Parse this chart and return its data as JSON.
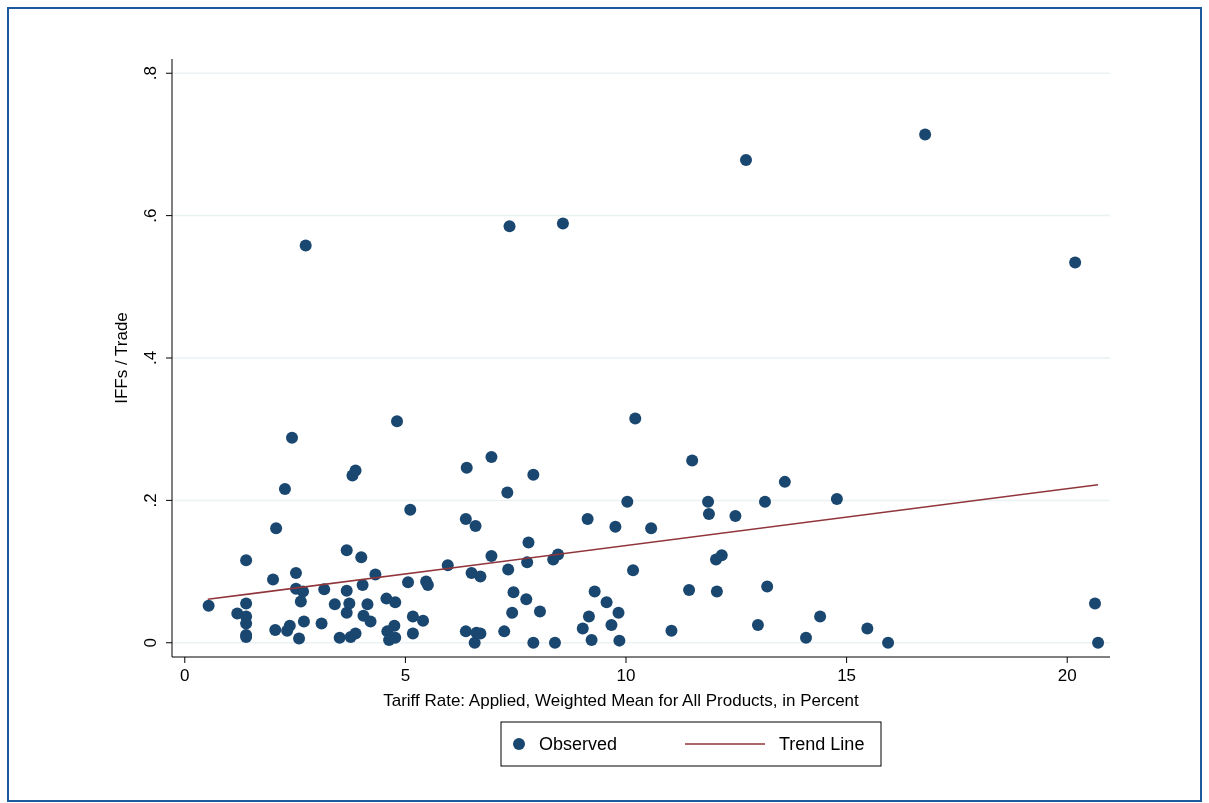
{
  "chart_data": {
    "type": "scatter",
    "xlabel": "Tariff Rate: Applied, Weighted Mean for All Products, in Percent",
    "ylabel": "IFFs / Trade",
    "xlim": [
      -0.29,
      20.97
    ],
    "ylim": [
      -0.02,
      0.82
    ],
    "xticks": [
      0,
      5,
      10,
      15,
      20
    ],
    "yticks": [
      0,
      {
        "value": 0.2,
        "label": ".2"
      },
      {
        "value": 0.4,
        "label": ".4"
      },
      {
        "value": 0.6,
        "label": ".6"
      },
      {
        "value": 0.8,
        "label": ".8"
      }
    ],
    "grid": "y",
    "legend": "bottom",
    "series": [
      {
        "name": "Observed",
        "marker": "circle",
        "color": "#1a476f",
        "x": [
          2.74,
          7.36,
          8.57,
          12.72,
          16.78,
          20.18,
          1.19,
          1.39,
          1.39,
          1.39,
          1.39,
          1.39,
          1.39,
          0.54,
          2.0,
          2.07,
          2.27,
          2.43,
          2.52,
          2.52,
          2.63,
          2.68,
          2.05,
          2.32,
          2.38,
          2.59,
          2.7,
          3.1,
          3.16,
          3.4,
          3.51,
          3.67,
          3.73,
          3.67,
          3.67,
          3.76,
          3.87,
          3.8,
          3.87,
          4.03,
          4.0,
          4.05,
          4.14,
          4.21,
          4.32,
          4.57,
          4.77,
          4.75,
          4.59,
          4.63,
          4.77,
          4.81,
          5.11,
          5.06,
          5.17,
          5.17,
          5.4,
          5.47,
          5.51,
          6.37,
          6.57,
          6.39,
          6.37,
          6.59,
          6.5,
          5.96,
          6.95,
          6.7,
          6.61,
          6.7,
          7.31,
          7.9,
          6.95,
          7.33,
          7.45,
          7.42,
          7.24,
          7.74,
          7.79,
          7.76,
          8.05,
          7.9,
          8.39,
          8.35,
          8.46,
          9.13,
          9.02,
          9.16,
          9.22,
          9.29,
          9.56,
          9.67,
          9.83,
          9.85,
          9.76,
          10.03,
          10.16,
          10.57,
          10.21,
          11.03,
          11.5,
          11.43,
          11.86,
          11.88,
          12.04,
          12.17,
          12.06,
          12.48,
          13.15,
          13.2,
          12.99,
          13.6,
          14.78,
          14.08,
          14.4,
          15.47,
          15.94,
          20.63,
          20.7
        ],
        "values": [
          0.558,
          0.585,
          0.589,
          0.678,
          0.714,
          0.534,
          0.041,
          0.055,
          0.037,
          0.027,
          0.011,
          0.008,
          0.116,
          0.052,
          0.089,
          0.161,
          0.216,
          0.288,
          0.098,
          0.076,
          0.058,
          0.072,
          0.018,
          0.017,
          0.024,
          0.006,
          0.03,
          0.027,
          0.075,
          0.054,
          0.007,
          0.13,
          0.055,
          0.042,
          0.073,
          0.008,
          0.013,
          0.235,
          0.242,
          0.081,
          0.12,
          0.038,
          0.054,
          0.03,
          0.096,
          0.062,
          0.057,
          0.024,
          0.016,
          0.004,
          0.007,
          0.311,
          0.187,
          0.085,
          0.013,
          0.037,
          0.031,
          0.086,
          0.081,
          0.016,
          0.0,
          0.246,
          0.174,
          0.164,
          0.098,
          0.109,
          0.261,
          0.093,
          0.014,
          0.013,
          0.211,
          0.236,
          0.122,
          0.103,
          0.071,
          0.042,
          0.016,
          0.061,
          0.141,
          0.113,
          0.044,
          0.0,
          0.0,
          0.117,
          0.124,
          0.174,
          0.02,
          0.037,
          0.004,
          0.072,
          0.057,
          0.025,
          0.042,
          0.003,
          0.163,
          0.198,
          0.102,
          0.161,
          0.315,
          0.017,
          0.256,
          0.074,
          0.198,
          0.181,
          0.117,
          0.123,
          0.072,
          0.178,
          0.198,
          0.079,
          0.025,
          0.226,
          0.202,
          0.007,
          0.037,
          0.02,
          0.0,
          0.055,
          0.0
        ]
      },
      {
        "name": "Trend Line",
        "type": "line",
        "color": "#90353b",
        "x": [
          0.52,
          20.7
        ],
        "values": [
          0.061,
          0.222
        ]
      }
    ]
  }
}
